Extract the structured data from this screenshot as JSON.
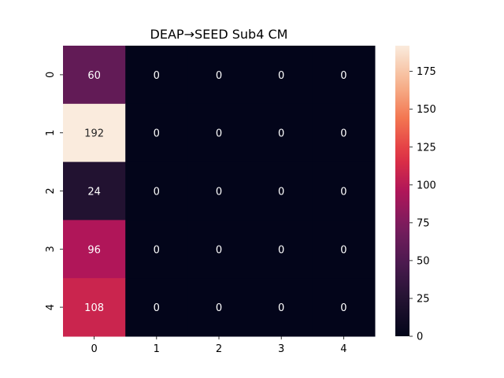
{
  "chart_data": {
    "type": "heatmap",
    "title": "DEAP→SEED Sub4 CM",
    "xlabel": "",
    "ylabel": "",
    "x_categories": [
      "0",
      "1",
      "2",
      "3",
      "4"
    ],
    "y_categories": [
      "0",
      "1",
      "2",
      "3",
      "4"
    ],
    "values": [
      [
        60,
        0,
        0,
        0,
        0
      ],
      [
        192,
        0,
        0,
        0,
        0
      ],
      [
        24,
        0,
        0,
        0,
        0
      ],
      [
        96,
        0,
        0,
        0,
        0
      ],
      [
        108,
        0,
        0,
        0,
        0
      ]
    ],
    "colorbar": {
      "range": [
        0,
        192
      ],
      "ticks": [
        0,
        25,
        50,
        75,
        100,
        125,
        150,
        175
      ],
      "colormap": "rocket"
    },
    "cell_text_colors": {
      "dark_background": "#ffffff",
      "light_background": "#262626"
    }
  }
}
